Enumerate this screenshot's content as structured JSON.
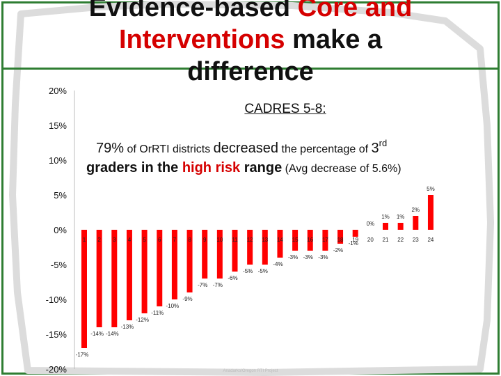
{
  "slide": {
    "title_part1": "Evidence-based",
    "title_part2": "Core and",
    "title_part3": "Interventions",
    "title_part4": "make a",
    "title_part5": "difference",
    "subtitle": "CADRES 5-8:",
    "stat_pct": "79%",
    "stat_text1": " of OrRTI districts ",
    "stat_emph1": "decreased",
    "stat_text2": " the percentage of ",
    "stat_grade": "3",
    "stat_sup": "rd",
    "stat_text3": "graders in the ",
    "stat_emph2": "high risk",
    "stat_text4": " range",
    "stat_text5": " (Avg decrease of 5.6%)",
    "watermark": "Anadarko/Oregon RTI Project",
    "title_color": "#d50000",
    "frame_color": "#2e7d32"
  },
  "chart_data": {
    "type": "bar",
    "categories": [
      "1",
      "2",
      "3",
      "4",
      "5",
      "6",
      "7",
      "8",
      "9",
      "10",
      "11",
      "12",
      "13",
      "14",
      "15",
      "16",
      "17",
      "18",
      "19",
      "20",
      "21",
      "22",
      "23",
      "24"
    ],
    "values": [
      -17,
      -14,
      -14,
      -13,
      -12,
      -11,
      -10,
      -9,
      -7,
      -7,
      -6,
      -5,
      -5,
      -4,
      -3,
      -3,
      -3,
      -2,
      -1,
      0,
      1,
      1,
      2,
      5
    ],
    "data_labels": [
      "-17%",
      "-14%",
      "-14%",
      "-13%",
      "-12%",
      "-11%",
      "-10%",
      "-9%",
      "-7%",
      "-7%",
      "-6%",
      "-5%",
      "-5%",
      "-4%",
      "-3%",
      "-3%",
      "-3%",
      "-2%",
      "-1%",
      "0%",
      "1%",
      "1%",
      "2%",
      "5%"
    ],
    "y_ticks": [
      "20%",
      "15%",
      "10%",
      "5%",
      "0%",
      "-5%",
      "-10%",
      "-15%",
      "-20%"
    ],
    "ylim": [
      -20,
      20
    ],
    "bar_color": "#ff0000",
    "grid": false
  }
}
